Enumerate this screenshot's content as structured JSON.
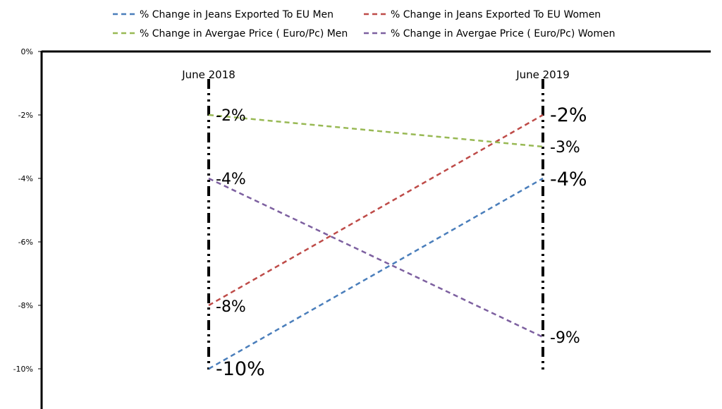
{
  "chart_data": {
    "type": "line",
    "categories": [
      "June 2018",
      "June 2019"
    ],
    "series": [
      {
        "name": "% Change in Jeans Exported To EU  Men",
        "values": [
          -10,
          -4
        ],
        "color": "#4a7ebb",
        "labels": [
          "-10%",
          "-4%"
        ]
      },
      {
        "name": "% Change in Jeans Exported To EU  Women",
        "values": [
          -8,
          -2
        ],
        "color": "#be4b48",
        "labels": [
          "-8%",
          "-2%"
        ]
      },
      {
        "name": "% Change in Avergae Price ( Euro/Pc) Men",
        "values": [
          -2,
          -3
        ],
        "color": "#98b954",
        "labels": [
          "-2%",
          "-3%"
        ]
      },
      {
        "name": "% Change in Avergae Price ( Euro/Pc) Women",
        "values": [
          -4,
          -9
        ],
        "color": "#7d60a0",
        "labels": [
          "-4%",
          "-9%"
        ]
      }
    ],
    "ylim": [
      -11,
      0
    ],
    "yticks": [
      0,
      -2,
      -4,
      -6,
      -8,
      -10
    ],
    "ytick_labels": [
      "0%",
      "-2%",
      "-4%",
      "-6%",
      "-8%",
      "-10%"
    ],
    "legend": "top",
    "grid": false
  }
}
